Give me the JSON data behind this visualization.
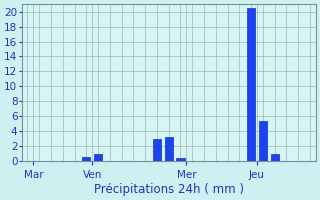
{
  "bar_positions": [
    6,
    7,
    12,
    13,
    14,
    20,
    21,
    22
  ],
  "bar_heights": [
    0.5,
    1.0,
    3.0,
    3.2,
    0.4,
    20.5,
    5.3,
    1.0
  ],
  "bar_color": "#1a44ee",
  "bar_width": 0.7,
  "background_color": "#cff0f0",
  "plot_bg_color": "#d8f5f5",
  "grid_color": "#9ab8b8",
  "axis_color": "#7090a0",
  "xlabel": "Précipitations 24h ( mm )",
  "xlabel_color": "#2233bb",
  "xlabel_fontsize": 8.5,
  "tick_color": "#2233bb",
  "tick_fontsize": 7.5,
  "ylim": [
    0,
    21
  ],
  "yticks": [
    0,
    2,
    4,
    6,
    8,
    10,
    12,
    14,
    16,
    18,
    20
  ],
  "day_labels": [
    "Mar",
    "Ven",
    "Mer",
    "Jeu"
  ],
  "day_positions": [
    1.5,
    6.5,
    14.5,
    20.5
  ],
  "xlim": [
    0.5,
    25.5
  ],
  "total_slots": 26,
  "figsize": [
    3.2,
    2.0
  ],
  "dpi": 100
}
